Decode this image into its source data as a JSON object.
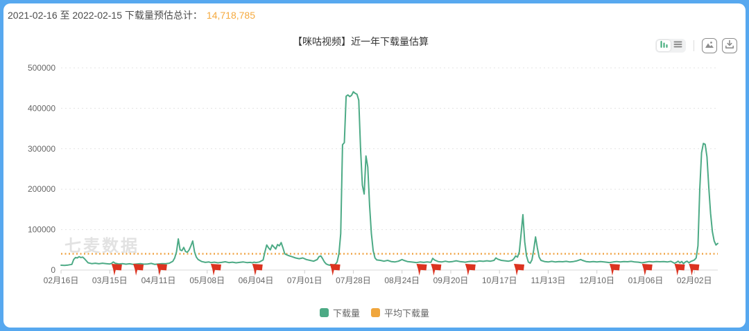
{
  "page": {
    "frame_color": "#57a8ef",
    "card_color": "#ffffff"
  },
  "summary": {
    "label": "2021-02-16 至 2022-02-15 下载量预估总计：",
    "total_value": "14,718,785",
    "value_color": "#f5a93e"
  },
  "header": {
    "title": "【咪咕视频】近一年下载量估算"
  },
  "toolbar": {
    "chart_view": "bar-chart-icon",
    "table_view": "list-icon",
    "save_image": "image-icon",
    "download_data": "download-icon"
  },
  "watermark": "七麦数据",
  "legend": [
    {
      "label": "下载量",
      "color": "#4caa85"
    },
    {
      "label": "平均下载量",
      "color": "#f0a63c"
    }
  ],
  "chart_data": {
    "type": "line",
    "title": "【咪咕视频】近一年下载量估算",
    "x_start_date": "2021-02-16",
    "x_end_date": "2022-02-15",
    "x_total_days": 364,
    "x_tick_days": [
      0,
      27,
      54,
      81,
      108,
      135,
      162,
      189,
      216,
      243,
      270,
      297,
      324,
      351
    ],
    "x_tick_labels": [
      "02月16日",
      "03月15日",
      "04月11日",
      "05月08日",
      "06月04日",
      "07月01日",
      "07月28日",
      "08月24日",
      "09月20日",
      "10月17日",
      "11月13日",
      "12月10日",
      "01月06日",
      "02月02日"
    ],
    "ylim": [
      0,
      500000
    ],
    "y_ticks": [
      0,
      100000,
      200000,
      300000,
      400000,
      500000
    ],
    "y_tick_labels": [
      "0",
      "100000",
      "200000",
      "300000",
      "400000",
      "500000"
    ],
    "grid": true,
    "legend_position": "bottom",
    "series": [
      {
        "name": "下载量",
        "color": "#4caa85",
        "points": [
          [
            0,
            12000
          ],
          [
            2,
            11500
          ],
          [
            4,
            12500
          ],
          [
            6,
            14000
          ],
          [
            7,
            26000
          ],
          [
            8,
            31000
          ],
          [
            9,
            30000
          ],
          [
            10,
            33000
          ],
          [
            11,
            31000
          ],
          [
            12,
            32000
          ],
          [
            13,
            28000
          ],
          [
            15,
            18000
          ],
          [
            17,
            16000
          ],
          [
            19,
            17000
          ],
          [
            21,
            15500
          ],
          [
            23,
            17000
          ],
          [
            25,
            16000
          ],
          [
            27,
            15000
          ],
          [
            28,
            16500
          ],
          [
            29,
            20000
          ],
          [
            30,
            17000
          ],
          [
            32,
            15000
          ],
          [
            34,
            16000
          ],
          [
            36,
            14500
          ],
          [
            38,
            15500
          ],
          [
            40,
            14000
          ],
          [
            42,
            15000
          ],
          [
            44,
            16000
          ],
          [
            46,
            14500
          ],
          [
            48,
            15000
          ],
          [
            50,
            16500
          ],
          [
            52,
            14000
          ],
          [
            54,
            15000
          ],
          [
            56,
            16000
          ],
          [
            58,
            15500
          ],
          [
            60,
            17000
          ],
          [
            62,
            22000
          ],
          [
            63,
            30000
          ],
          [
            64,
            45000
          ],
          [
            65,
            77000
          ],
          [
            66,
            50000
          ],
          [
            67,
            48000
          ],
          [
            68,
            56000
          ],
          [
            69,
            46000
          ],
          [
            70,
            44000
          ],
          [
            71,
            50000
          ],
          [
            72,
            60000
          ],
          [
            73,
            72000
          ],
          [
            74,
            45000
          ],
          [
            75,
            32000
          ],
          [
            76,
            26000
          ],
          [
            78,
            21000
          ],
          [
            80,
            19000
          ],
          [
            82,
            20000
          ],
          [
            83,
            18500
          ],
          [
            85,
            19500
          ],
          [
            87,
            18000
          ],
          [
            89,
            19000
          ],
          [
            91,
            20500
          ],
          [
            93,
            18500
          ],
          [
            95,
            19500
          ],
          [
            97,
            18000
          ],
          [
            99,
            19000
          ],
          [
            101,
            20000
          ],
          [
            103,
            18500
          ],
          [
            105,
            19000
          ],
          [
            106,
            18000
          ],
          [
            107,
            19500
          ],
          [
            108,
            18500
          ],
          [
            110,
            20000
          ],
          [
            112,
            25000
          ],
          [
            113,
            45000
          ],
          [
            114,
            62000
          ],
          [
            115,
            55000
          ],
          [
            116,
            50000
          ],
          [
            117,
            62000
          ],
          [
            118,
            57000
          ],
          [
            119,
            52000
          ],
          [
            120,
            63000
          ],
          [
            121,
            60000
          ],
          [
            122,
            68000
          ],
          [
            123,
            55000
          ],
          [
            124,
            40000
          ],
          [
            125,
            38000
          ],
          [
            126,
            36000
          ],
          [
            128,
            33000
          ],
          [
            130,
            30000
          ],
          [
            132,
            28000
          ],
          [
            134,
            30000
          ],
          [
            136,
            26000
          ],
          [
            138,
            24000
          ],
          [
            140,
            22000
          ],
          [
            142,
            26000
          ],
          [
            143,
            33000
          ],
          [
            144,
            35000
          ],
          [
            145,
            28000
          ],
          [
            146,
            20000
          ],
          [
            147,
            15000
          ],
          [
            148,
            13000
          ],
          [
            149,
            12000
          ],
          [
            150,
            13000
          ],
          [
            151,
            12500
          ],
          [
            152,
            14000
          ],
          [
            153,
            20000
          ],
          [
            154,
            40000
          ],
          [
            155,
            90000
          ],
          [
            156,
            310000
          ],
          [
            157,
            315000
          ],
          [
            158,
            430000
          ],
          [
            159,
            433000
          ],
          [
            160,
            429000
          ],
          [
            161,
            432000
          ],
          [
            162,
            441000
          ],
          [
            163,
            437000
          ],
          [
            164,
            435000
          ],
          [
            165,
            420000
          ],
          [
            166,
            300000
          ],
          [
            167,
            210000
          ],
          [
            168,
            188000
          ],
          [
            169,
            282000
          ],
          [
            170,
            255000
          ],
          [
            171,
            160000
          ],
          [
            172,
            90000
          ],
          [
            173,
            48000
          ],
          [
            174,
            30000
          ],
          [
            175,
            25000
          ],
          [
            177,
            24000
          ],
          [
            179,
            22000
          ],
          [
            181,
            24000
          ],
          [
            183,
            21000
          ],
          [
            185,
            20000
          ],
          [
            187,
            22000
          ],
          [
            189,
            26000
          ],
          [
            190,
            24000
          ],
          [
            192,
            21000
          ],
          [
            194,
            20000
          ],
          [
            196,
            19000
          ],
          [
            197,
            18500
          ],
          [
            199,
            20000
          ],
          [
            201,
            19000
          ],
          [
            203,
            20000
          ],
          [
            205,
            19000
          ],
          [
            206,
            29000
          ],
          [
            207,
            25000
          ],
          [
            209,
            21000
          ],
          [
            211,
            20000
          ],
          [
            213,
            22000
          ],
          [
            215,
            20000
          ],
          [
            217,
            21000
          ],
          [
            219,
            23000
          ],
          [
            221,
            21000
          ],
          [
            223,
            20000
          ],
          [
            224,
            19500
          ],
          [
            226,
            21000
          ],
          [
            228,
            22000
          ],
          [
            230,
            21000
          ],
          [
            232,
            22500
          ],
          [
            234,
            21500
          ],
          [
            236,
            23000
          ],
          [
            238,
            22000
          ],
          [
            240,
            24000
          ],
          [
            241,
            30000
          ],
          [
            242,
            27000
          ],
          [
            244,
            24000
          ],
          [
            246,
            23000
          ],
          [
            248,
            22000
          ],
          [
            250,
            24000
          ],
          [
            251,
            28000
          ],
          [
            252,
            35000
          ],
          [
            253,
            32000
          ],
          [
            254,
            45000
          ],
          [
            255,
            90000
          ],
          [
            256,
            137000
          ],
          [
            257,
            70000
          ],
          [
            258,
            35000
          ],
          [
            259,
            20000
          ],
          [
            260,
            17000
          ],
          [
            261,
            25000
          ],
          [
            262,
            50000
          ],
          [
            263,
            82000
          ],
          [
            264,
            55000
          ],
          [
            265,
            32000
          ],
          [
            266,
            24000
          ],
          [
            268,
            21000
          ],
          [
            270,
            20000
          ],
          [
            272,
            21500
          ],
          [
            274,
            20000
          ],
          [
            276,
            21000
          ],
          [
            278,
            20500
          ],
          [
            280,
            21500
          ],
          [
            282,
            20000
          ],
          [
            284,
            21000
          ],
          [
            286,
            23000
          ],
          [
            288,
            26000
          ],
          [
            289,
            24000
          ],
          [
            291,
            21000
          ],
          [
            293,
            20000
          ],
          [
            295,
            21000
          ],
          [
            297,
            20000
          ],
          [
            299,
            21000
          ],
          [
            301,
            20000
          ],
          [
            303,
            19000
          ],
          [
            304,
            18500
          ],
          [
            306,
            20000
          ],
          [
            308,
            21000
          ],
          [
            310,
            20000
          ],
          [
            312,
            21000
          ],
          [
            314,
            20500
          ],
          [
            316,
            21500
          ],
          [
            318,
            20000
          ],
          [
            320,
            19500
          ],
          [
            322,
            18000
          ],
          [
            324,
            19500
          ],
          [
            326,
            21000
          ],
          [
            328,
            20000
          ],
          [
            330,
            21000
          ],
          [
            332,
            20500
          ],
          [
            334,
            21000
          ],
          [
            336,
            20000
          ],
          [
            338,
            21500
          ],
          [
            340,
            17000
          ],
          [
            341,
            19000
          ],
          [
            342,
            22000
          ],
          [
            343,
            18000
          ],
          [
            344,
            21000
          ],
          [
            345,
            16000
          ],
          [
            346,
            20000
          ],
          [
            347,
            22000
          ],
          [
            348,
            18000
          ],
          [
            349,
            21000
          ],
          [
            350,
            23000
          ],
          [
            351,
            25000
          ],
          [
            352,
            30000
          ],
          [
            353,
            60000
          ],
          [
            354,
            200000
          ],
          [
            355,
            290000
          ],
          [
            356,
            313000
          ],
          [
            357,
            311000
          ],
          [
            358,
            280000
          ],
          [
            359,
            205000
          ],
          [
            360,
            140000
          ],
          [
            361,
            95000
          ],
          [
            362,
            72000
          ],
          [
            363,
            62000
          ],
          [
            364,
            66000
          ]
        ]
      }
    ],
    "average_line": {
      "name": "平均下载量",
      "value": 40325,
      "color": "#f0a648"
    },
    "flag_days": [
      28,
      40,
      53,
      83,
      106,
      149,
      197,
      205,
      224,
      251,
      304,
      322,
      340,
      348
    ],
    "flag_color": "#dc3320",
    "colors": {
      "gridline": "#e3e3e3",
      "axis": "#d9d9d9",
      "tick_text": "#666666"
    }
  }
}
